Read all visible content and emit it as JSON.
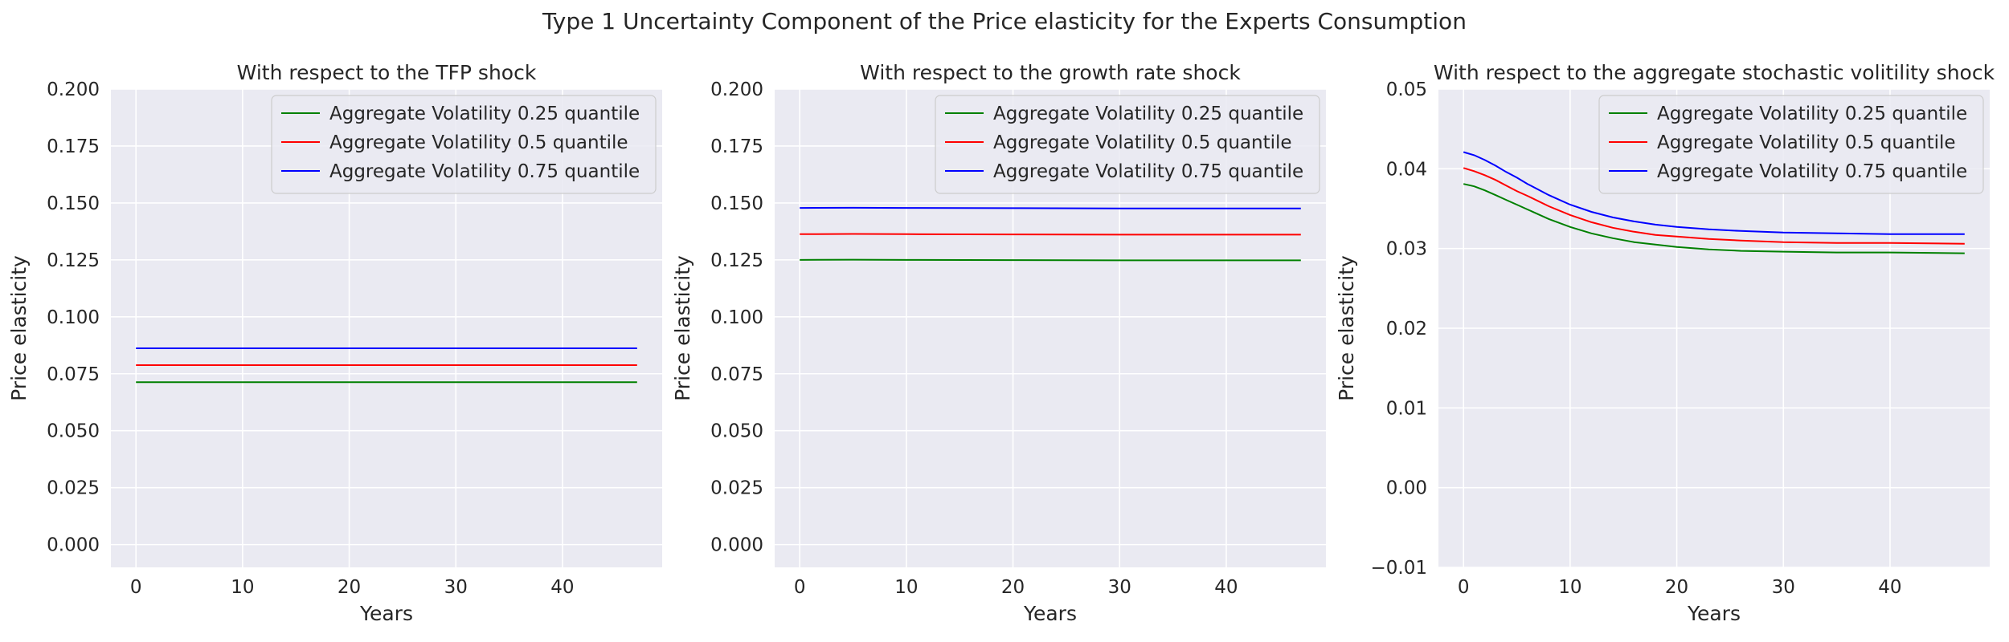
{
  "figure": {
    "title": "Type 1 Uncertainty Component of the Price elasticity for the Experts Consumption"
  },
  "chart_data": [
    {
      "type": "line",
      "title": "With respect to the TFP shock",
      "xlabel": "Years",
      "ylabel": "Price elasticity",
      "xlim": [
        -2.35,
        49.35
      ],
      "ylim": [
        -0.01,
        0.2
      ],
      "xticks": [
        0,
        10,
        20,
        30,
        40
      ],
      "xtick_labels": [
        "0",
        "10",
        "20",
        "30",
        "40"
      ],
      "yticks": [
        0.0,
        0.025,
        0.05,
        0.075,
        0.1,
        0.125,
        0.15,
        0.175,
        0.2
      ],
      "ytick_labels": [
        "0.000",
        "0.025",
        "0.050",
        "0.075",
        "0.100",
        "0.125",
        "0.150",
        "0.175",
        "0.200"
      ],
      "grid": true,
      "legend": "top-right",
      "x": [
        0,
        47
      ],
      "series": [
        {
          "name": "Aggregate Volatility 0.25 quantile",
          "color": "#008000",
          "values": [
            0.0713,
            0.0713
          ]
        },
        {
          "name": "Aggregate Volatility 0.5 quantile",
          "color": "#ff0000",
          "values": [
            0.0788,
            0.0788
          ]
        },
        {
          "name": "Aggregate Volatility 0.75 quantile",
          "color": "#0000ff",
          "values": [
            0.0862,
            0.0862
          ]
        }
      ]
    },
    {
      "type": "line",
      "title": "With respect to the growth rate shock",
      "xlabel": "Years",
      "ylabel": "Price elasticity",
      "xlim": [
        -2.35,
        49.35
      ],
      "ylim": [
        -0.01,
        0.2
      ],
      "xticks": [
        0,
        10,
        20,
        30,
        40
      ],
      "xtick_labels": [
        "0",
        "10",
        "20",
        "30",
        "40"
      ],
      "yticks": [
        0.0,
        0.025,
        0.05,
        0.075,
        0.1,
        0.125,
        0.15,
        0.175,
        0.2
      ],
      "ytick_labels": [
        "0.000",
        "0.025",
        "0.050",
        "0.075",
        "0.100",
        "0.125",
        "0.150",
        "0.175",
        "0.200"
      ],
      "grid": true,
      "legend": "top-right",
      "x": [
        0,
        5,
        10,
        20,
        30,
        40,
        47
      ],
      "series": [
        {
          "name": "Aggregate Volatility 0.25 quantile",
          "color": "#008000",
          "values": [
            0.125,
            0.1251,
            0.125,
            0.1249,
            0.1248,
            0.1248,
            0.1248
          ]
        },
        {
          "name": "Aggregate Volatility 0.5 quantile",
          "color": "#ff0000",
          "values": [
            0.1363,
            0.1364,
            0.1363,
            0.1362,
            0.1361,
            0.1361,
            0.1361
          ]
        },
        {
          "name": "Aggregate Volatility 0.75 quantile",
          "color": "#0000ff",
          "values": [
            0.1478,
            0.1479,
            0.1478,
            0.1477,
            0.1476,
            0.1476,
            0.1476
          ]
        }
      ]
    },
    {
      "type": "line",
      "title": "With respect to the aggregate stochastic volitility shock",
      "xlabel": "Years",
      "ylabel": "Price elasticity",
      "xlim": [
        -2.35,
        49.35
      ],
      "ylim": [
        -0.01,
        0.05
      ],
      "xticks": [
        0,
        10,
        20,
        30,
        40
      ],
      "xtick_labels": [
        "0",
        "10",
        "20",
        "30",
        "40"
      ],
      "yticks": [
        -0.01,
        0.0,
        0.01,
        0.02,
        0.03,
        0.04,
        0.05
      ],
      "ytick_labels": [
        "−0.01",
        "0.00",
        "0.01",
        "0.02",
        "0.03",
        "0.04",
        "0.05"
      ],
      "grid": true,
      "legend": "top-right",
      "x": [
        0,
        1,
        2,
        3,
        4,
        5,
        6,
        8,
        10,
        12,
        14,
        16,
        18,
        20,
        23,
        26,
        30,
        35,
        40,
        47
      ],
      "series": [
        {
          "name": "Aggregate Volatility 0.25 quantile",
          "color": "#008000",
          "values": [
            0.0381,
            0.0378,
            0.0373,
            0.0367,
            0.0361,
            0.0355,
            0.0349,
            0.0337,
            0.0327,
            0.0319,
            0.0313,
            0.0308,
            0.0305,
            0.0302,
            0.0299,
            0.0297,
            0.0296,
            0.0295,
            0.0295,
            0.0294
          ]
        },
        {
          "name": "Aggregate Volatility 0.5 quantile",
          "color": "#ff0000",
          "values": [
            0.0401,
            0.0397,
            0.0392,
            0.0386,
            0.0379,
            0.0372,
            0.0366,
            0.0353,
            0.0342,
            0.0333,
            0.0326,
            0.0321,
            0.0317,
            0.0315,
            0.0312,
            0.031,
            0.0308,
            0.0307,
            0.0307,
            0.0306
          ]
        },
        {
          "name": "Aggregate Volatility 0.75 quantile",
          "color": "#0000ff",
          "values": [
            0.0421,
            0.0417,
            0.0411,
            0.0404,
            0.0396,
            0.0389,
            0.0381,
            0.0367,
            0.0355,
            0.0346,
            0.0339,
            0.0334,
            0.033,
            0.0327,
            0.0324,
            0.0322,
            0.032,
            0.0319,
            0.0318,
            0.0318
          ]
        }
      ]
    }
  ]
}
